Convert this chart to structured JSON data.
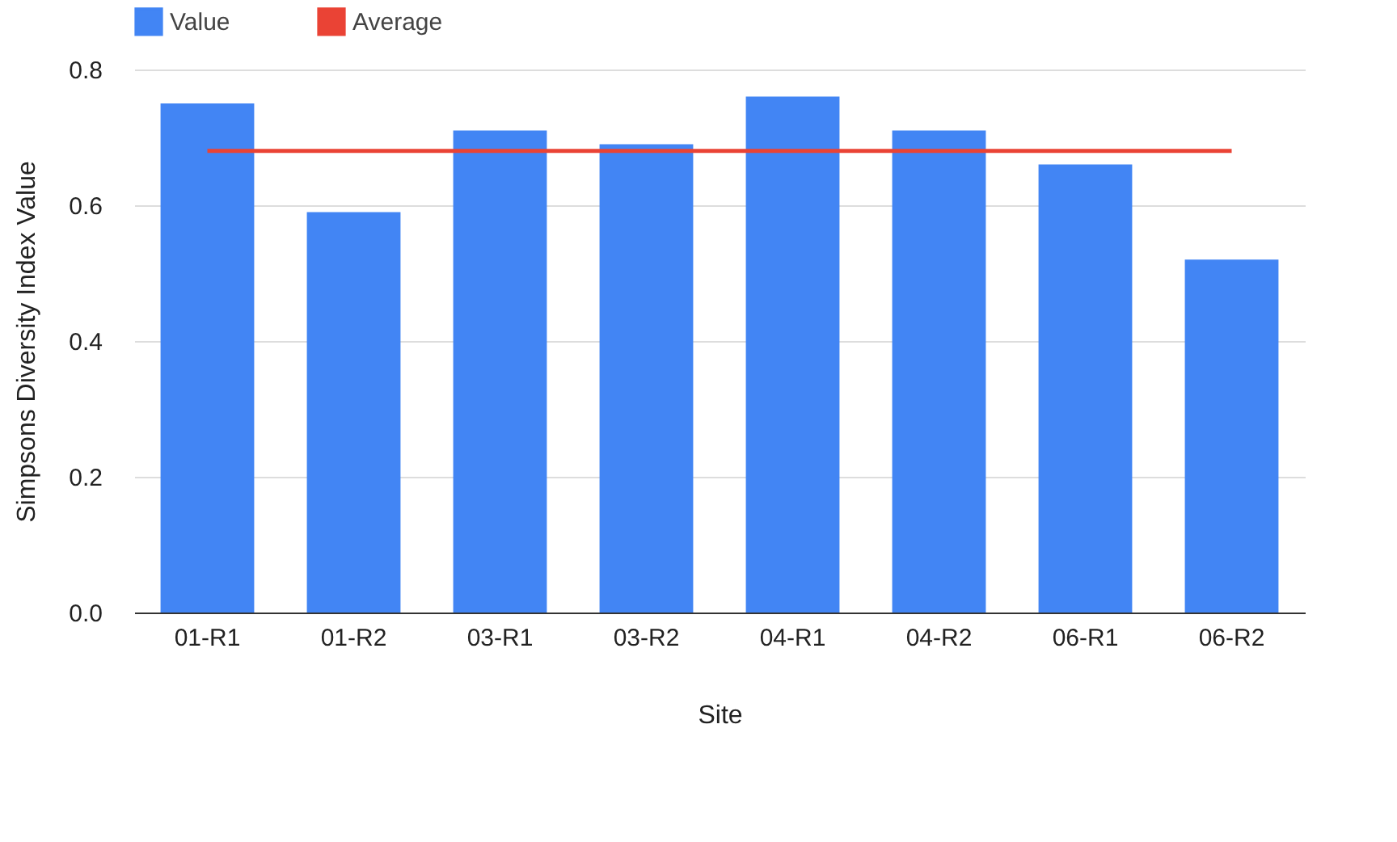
{
  "chart_data": {
    "type": "bar",
    "xlabel": "Site",
    "ylabel": "Simpsons Diversity Index Value",
    "categories": [
      "01-R1",
      "01-R2",
      "03-R1",
      "03-R2",
      "04-R1",
      "04-R2",
      "06-R1",
      "06-R2"
    ],
    "series": [
      {
        "name": "Value",
        "color": "#4285f4",
        "values": [
          0.75,
          0.59,
          0.71,
          0.69,
          0.76,
          0.71,
          0.66,
          0.52
        ]
      },
      {
        "name": "Average",
        "type": "line",
        "color": "#ea4335",
        "values": [
          0.68,
          0.68,
          0.68,
          0.68,
          0.68,
          0.68,
          0.68,
          0.68
        ]
      }
    ],
    "ylim": [
      0,
      0.8
    ],
    "yticks": [
      {
        "value": 0,
        "label": "0.0"
      },
      0.2,
      0.4,
      0.6,
      0.8
    ],
    "grid": "y",
    "legend": "top",
    "line_style": "solid",
    "marker": "none"
  }
}
